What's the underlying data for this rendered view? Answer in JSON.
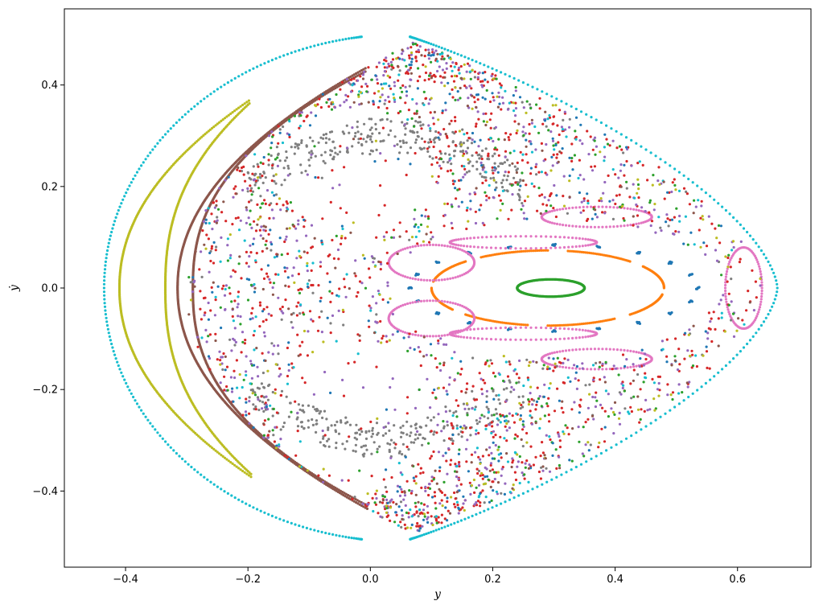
{
  "chart_data": {
    "type": "scatter",
    "title": "",
    "xlabel": "y",
    "ylabel": "ẏ",
    "xlim": [
      -0.5,
      0.72
    ],
    "ylim": [
      -0.55,
      0.55
    ],
    "grid": false,
    "legend": "none",
    "x_ticks": [
      -0.4,
      -0.2,
      0.0,
      0.2,
      0.4,
      0.6
    ],
    "y_ticks": [
      -0.4,
      -0.2,
      0.0,
      0.2,
      0.4
    ],
    "x_tick_labels": [
      "−0.4",
      "−0.2",
      "0.0",
      "0.2",
      "0.4",
      "0.6"
    ],
    "y_tick_labels": [
      "−0.4",
      "−0.2",
      "0.0",
      "0.2",
      "0.4"
    ],
    "marker": "dot",
    "series": [
      {
        "color": "#17becf",
        "kind": "egg",
        "params": {
          "xl": -0.44,
          "xr": 0.665,
          "xc": 0.05,
          "ymax": 0.5,
          "n": 420
        }
      },
      {
        "color": "#bcbd22",
        "kind": "crescent",
        "params": {
          "outer_x": -0.41,
          "inner_x": -0.335,
          "tip_x": -0.195,
          "tip_y": 0.372,
          "n": 260
        }
      },
      {
        "color": "#8c564b",
        "kind": "crescent",
        "params": {
          "outer_x": -0.315,
          "inner_x": -0.29,
          "tip_x": -0.005,
          "tip_y": 0.435,
          "n": 420
        }
      },
      {
        "color": "#2ca02c",
        "kind": "ellipse",
        "params": {
          "cx": 0.295,
          "cy": 0.0,
          "rx": 0.055,
          "ry": 0.017,
          "n": 300
        }
      },
      {
        "color": "#ff7f0e",
        "kind": "ellipse",
        "params": {
          "cx": 0.29,
          "cy": 0.0,
          "rx": 0.19,
          "ry": 0.074,
          "n": 360
        }
      },
      {
        "color": "#1f77b4",
        "kind": "islands",
        "params": {
          "cx": 0.3,
          "cy": 0.0,
          "rx": 0.235,
          "ry": 0.085,
          "k": 20
        }
      },
      {
        "color": "#e377c2",
        "kind": "island-chain",
        "params": {
          "cx": 0.3,
          "cy": 0.0
        }
      },
      {
        "color": "#7f7f7f",
        "kind": "chaotic-band",
        "params": {
          "n": 520
        }
      },
      {
        "color": "#d62728",
        "kind": "chaotic-sea",
        "params": {
          "n": 900
        }
      },
      {
        "color": "#9467bd",
        "kind": "chaotic-sea",
        "params": {
          "n": 600
        }
      },
      {
        "color": "#2ca02c",
        "kind": "chaotic-sea",
        "params": {
          "n": 220
        }
      },
      {
        "color": "#1f77b4",
        "kind": "chaotic-sea",
        "params": {
          "n": 220
        }
      },
      {
        "color": "#17becf",
        "kind": "chaotic-sea",
        "params": {
          "n": 180
        }
      },
      {
        "color": "#bcbd22",
        "kind": "chaotic-sea",
        "params": {
          "n": 160
        }
      },
      {
        "color": "#8c564b",
        "kind": "chaotic-sea",
        "params": {
          "n": 150
        }
      }
    ]
  }
}
